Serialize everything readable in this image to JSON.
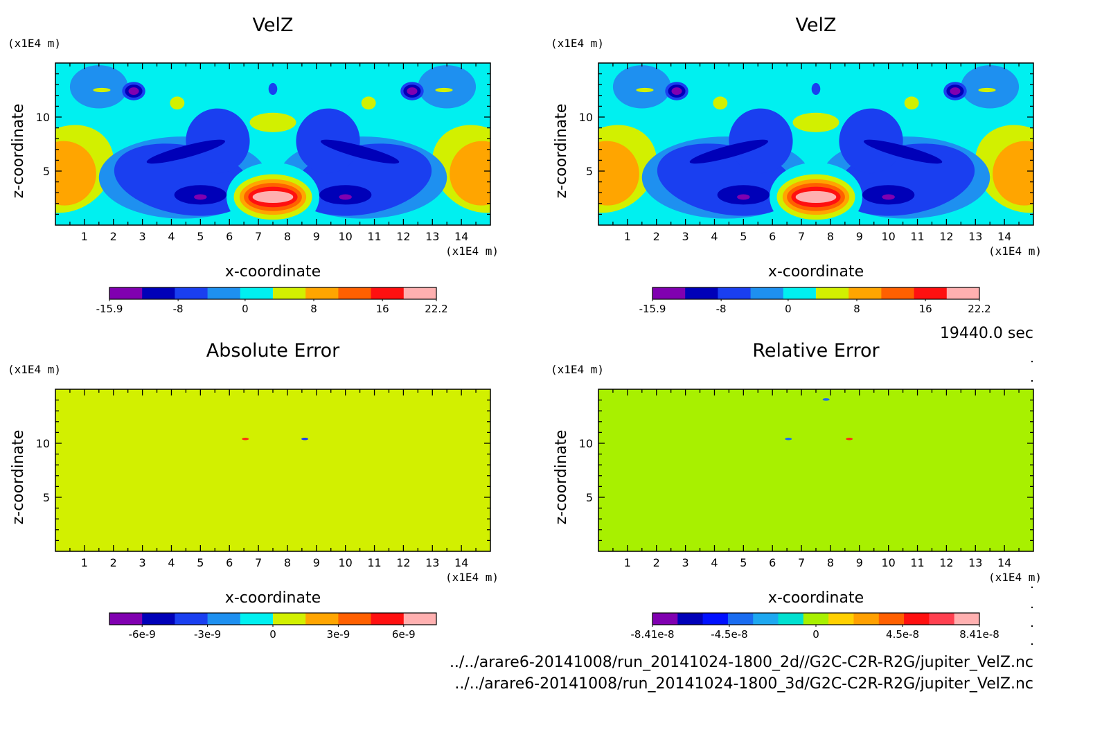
{
  "time_label": "19440.0 sec",
  "footer": {
    "line1": "../../arare6-20141008/run_20141024-1800_2d//G2C-C2R-R2G/jupiter_VelZ.nc",
    "line2": "../../arare6-20141008/run_20141024-1800_3d/G2C-C2R-R2G/jupiter_VelZ.nc"
  },
  "chart_data": [
    {
      "type": "heatmap",
      "title": "VelZ",
      "xlabel": "x-coordinate",
      "ylabel": "z-coordinate",
      "x_unit": "(x1E4 m)",
      "y_unit": "(x1E4 m)",
      "xlim": [
        0,
        15
      ],
      "ylim": [
        0,
        15
      ],
      "x_ticks": [
        "1",
        "2",
        "3",
        "4",
        "5",
        "6",
        "7",
        "8",
        "9",
        "10",
        "11",
        "12",
        "13",
        "14"
      ],
      "y_ticks": [
        "5",
        "10"
      ],
      "colorbar": {
        "colors": [
          "#8000b0",
          "#0000b8",
          "#1a3ff0",
          "#1e90f0",
          "#00f0f0",
          "#d2f000",
          "#ffa500",
          "#ff6000",
          "#ff1010",
          "#ffb0b0"
        ],
        "labels": [
          "-15.9",
          "-8",
          "0",
          "8",
          "16",
          "22.2"
        ]
      }
    },
    {
      "type": "heatmap",
      "title": "VelZ",
      "xlabel": "x-coordinate",
      "ylabel": "z-coordinate",
      "x_unit": "(x1E4 m)",
      "y_unit": "(x1E4 m)",
      "xlim": [
        0,
        15
      ],
      "ylim": [
        0,
        15
      ],
      "x_ticks": [
        "1",
        "2",
        "3",
        "4",
        "5",
        "6",
        "7",
        "8",
        "9",
        "10",
        "11",
        "12",
        "13",
        "14"
      ],
      "y_ticks": [
        "5",
        "10"
      ],
      "colorbar": {
        "colors": [
          "#8000b0",
          "#0000b8",
          "#1a3ff0",
          "#1e90f0",
          "#00f0f0",
          "#d2f000",
          "#ffa500",
          "#ff6000",
          "#ff1010",
          "#ffb0b0"
        ],
        "labels": [
          "-15.9",
          "-8",
          "0",
          "8",
          "16",
          "22.2"
        ]
      }
    },
    {
      "type": "heatmap",
      "title": "Absolute Error",
      "xlabel": "x-coordinate",
      "ylabel": "z-coordinate",
      "x_unit": "(x1E4 m)",
      "y_unit": "(x1E4 m)",
      "xlim": [
        0,
        15
      ],
      "ylim": [
        0,
        15
      ],
      "x_ticks": [
        "1",
        "2",
        "3",
        "4",
        "5",
        "6",
        "7",
        "8",
        "9",
        "10",
        "11",
        "12",
        "13",
        "14"
      ],
      "y_ticks": [
        "5",
        "10"
      ],
      "background_color": "#d2f000",
      "colorbar": {
        "colors": [
          "#8000b0",
          "#0000b8",
          "#1a3ff0",
          "#1e90f0",
          "#00f0f0",
          "#d2f000",
          "#ffa500",
          "#ff6000",
          "#ff1010",
          "#ffb0b0"
        ],
        "labels": [
          "-6e-9",
          "-3e-9",
          "0",
          "3e-9",
          "6e-9"
        ]
      }
    },
    {
      "type": "heatmap",
      "title": "Relative Error",
      "xlabel": "x-coordinate",
      "ylabel": "z-coordinate",
      "x_unit": "(x1E4 m)",
      "y_unit": "(x1E4 m)",
      "xlim": [
        0,
        15
      ],
      "ylim": [
        0,
        15
      ],
      "x_ticks": [
        "1",
        "2",
        "3",
        "4",
        "5",
        "6",
        "7",
        "8",
        "9",
        "10",
        "11",
        "12",
        "13",
        "14"
      ],
      "y_ticks": [
        "5",
        "10"
      ],
      "background_color": "#a8f000",
      "colorbar": {
        "colors": [
          "#8000b0",
          "#0000b8",
          "#0010ff",
          "#1a6cf0",
          "#1ea8f0",
          "#00e0d0",
          "#a8f000",
          "#ffd000",
          "#ffa000",
          "#ff6000",
          "#ff1010",
          "#ff4050",
          "#ffb0b0"
        ],
        "labels": [
          "-8.41e-8",
          "-4.5e-8",
          "0",
          "4.5e-8",
          "8.41e-8"
        ]
      }
    }
  ]
}
